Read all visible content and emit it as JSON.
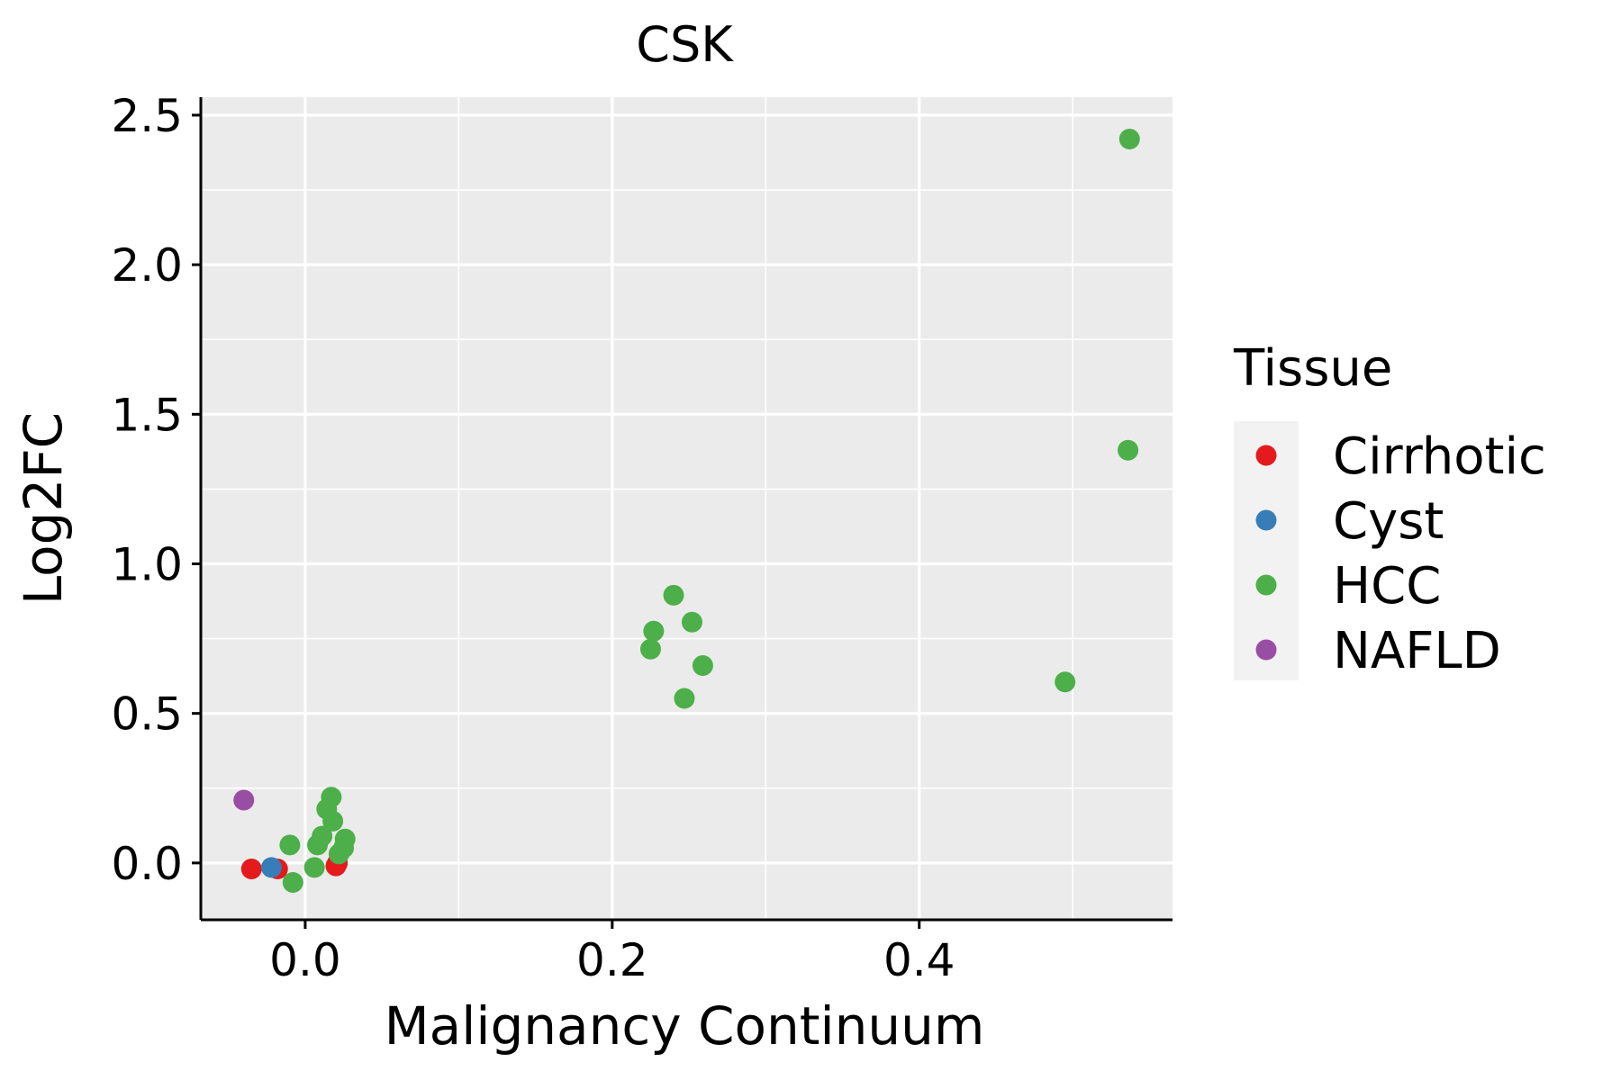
{
  "chart_data": {
    "type": "scatter",
    "title": "CSK",
    "xlabel": "Malignancy Continuum",
    "ylabel": "Log2FC",
    "xlim": [
      -0.068,
      0.565
    ],
    "ylim": [
      -0.19,
      2.56
    ],
    "xticks": [
      0.0,
      0.2,
      0.4
    ],
    "xtick_labels": [
      "0.0",
      "0.2",
      "0.4"
    ],
    "yticks": [
      0.0,
      0.5,
      1.0,
      1.5,
      2.0,
      2.5
    ],
    "ytick_labels": [
      "0.0",
      "0.5",
      "1.0",
      "1.5",
      "2.0",
      "2.5"
    ],
    "grid": true,
    "legend": {
      "title": "Tissue",
      "position": "right",
      "entries": [
        "Cirrhotic",
        "Cyst",
        "HCC",
        "NAFLD"
      ]
    },
    "colors": {
      "Cirrhotic": "#E41A1C",
      "Cyst": "#377EB8",
      "HCC": "#4DAF4A",
      "NAFLD": "#984EA3"
    },
    "panel_background": "#EBEBEB",
    "grid_color": "#FFFFFF",
    "series": [
      {
        "name": "Cirrhotic",
        "points": [
          [
            -0.035,
            -0.02
          ],
          [
            -0.018,
            -0.02
          ],
          [
            0.021,
            0.0
          ],
          [
            0.02,
            -0.01
          ]
        ]
      },
      {
        "name": "Cyst",
        "points": [
          [
            -0.022,
            -0.015
          ]
        ]
      },
      {
        "name": "HCC",
        "points": [
          [
            -0.01,
            0.06
          ],
          [
            -0.008,
            -0.065
          ],
          [
            0.006,
            -0.015
          ],
          [
            0.008,
            0.06
          ],
          [
            0.011,
            0.09
          ],
          [
            0.014,
            0.18
          ],
          [
            0.017,
            0.22
          ],
          [
            0.018,
            0.14
          ],
          [
            0.022,
            0.03
          ],
          [
            0.025,
            0.05
          ],
          [
            0.026,
            0.08
          ],
          [
            0.225,
            0.715
          ],
          [
            0.227,
            0.775
          ],
          [
            0.24,
            0.895
          ],
          [
            0.247,
            0.55
          ],
          [
            0.252,
            0.805
          ],
          [
            0.259,
            0.66
          ],
          [
            0.495,
            0.605
          ],
          [
            0.536,
            1.38
          ],
          [
            0.537,
            2.42
          ]
        ]
      },
      {
        "name": "NAFLD",
        "points": [
          [
            -0.04,
            0.21
          ]
        ]
      }
    ]
  }
}
